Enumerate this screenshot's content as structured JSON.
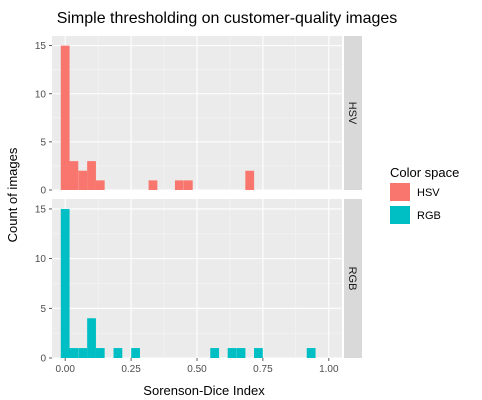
{
  "chart_data": {
    "type": "histogram",
    "title": "Simple thresholding on customer-quality images",
    "xlabel": "Sorenson-Dice Index",
    "ylabel": "Count of images",
    "xlim": [
      -0.05,
      1.05
    ],
    "ylim": [
      0,
      16
    ],
    "x_ticks": [
      "0.00",
      "0.25",
      "0.50",
      "0.75",
      "1.00"
    ],
    "y_ticks": [
      "0",
      "5",
      "10",
      "15"
    ],
    "x_tick_values": [
      0,
      0.25,
      0.5,
      0.75,
      1.0
    ],
    "y_tick_values": [
      0,
      5,
      10,
      15
    ],
    "bin_width": 0.0333,
    "grid": true,
    "legend": {
      "title": "Color space",
      "position": "right",
      "entries": [
        {
          "label": "HSV",
          "color": "#F8766D"
        },
        {
          "label": "RGB",
          "color": "#00BFC4"
        }
      ]
    },
    "facets": [
      {
        "strip": "HSV",
        "color": "#F8766D",
        "bins": [
          {
            "x": 0.0,
            "count": 15
          },
          {
            "x": 0.033,
            "count": 3
          },
          {
            "x": 0.067,
            "count": 2
          },
          {
            "x": 0.1,
            "count": 3
          },
          {
            "x": 0.133,
            "count": 1
          },
          {
            "x": 0.333,
            "count": 1
          },
          {
            "x": 0.433,
            "count": 1
          },
          {
            "x": 0.467,
            "count": 1
          },
          {
            "x": 0.7,
            "count": 2
          }
        ]
      },
      {
        "strip": "RGB",
        "color": "#00BFC4",
        "bins": [
          {
            "x": 0.0,
            "count": 15
          },
          {
            "x": 0.033,
            "count": 1
          },
          {
            "x": 0.067,
            "count": 1
          },
          {
            "x": 0.1,
            "count": 4
          },
          {
            "x": 0.133,
            "count": 1
          },
          {
            "x": 0.2,
            "count": 1
          },
          {
            "x": 0.267,
            "count": 1
          },
          {
            "x": 0.567,
            "count": 1
          },
          {
            "x": 0.633,
            "count": 1
          },
          {
            "x": 0.667,
            "count": 1
          },
          {
            "x": 0.733,
            "count": 1
          },
          {
            "x": 0.933,
            "count": 1
          }
        ]
      }
    ]
  }
}
